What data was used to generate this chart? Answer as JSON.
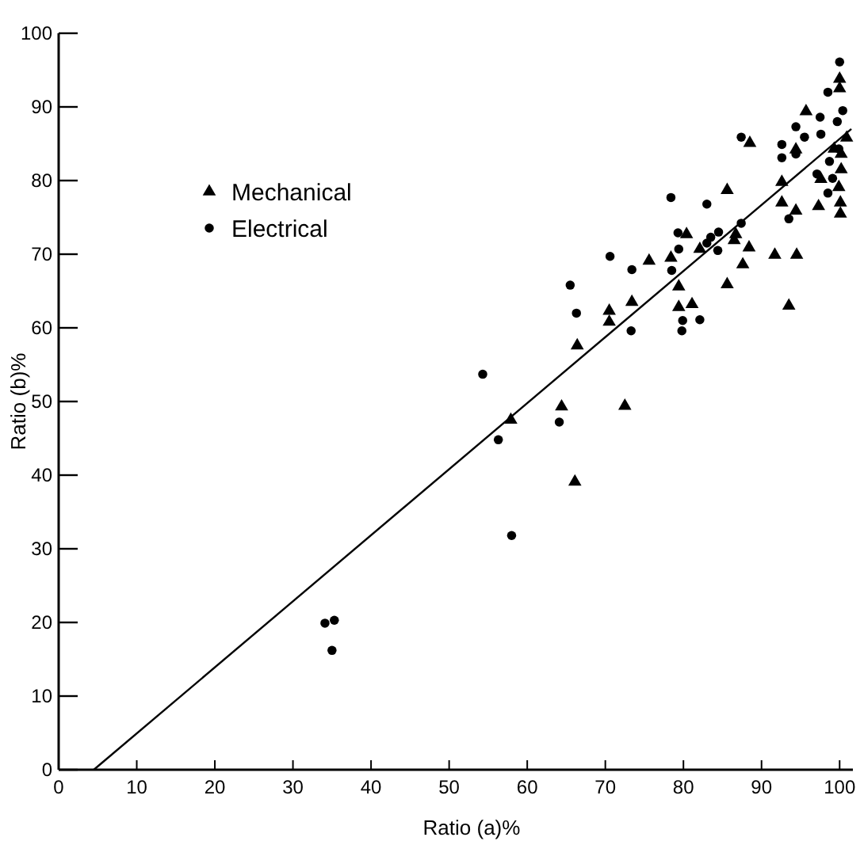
{
  "chart_data": {
    "type": "scatter",
    "xlabel": "Ratio (a)%",
    "ylabel": "Ratio (b)%",
    "xlim": [
      0,
      101.7
    ],
    "ylim": [
      0,
      100
    ],
    "xticks": [
      0,
      10,
      20,
      30,
      40,
      50,
      60,
      70,
      80,
      90,
      100
    ],
    "yticks": [
      0,
      10,
      20,
      30,
      40,
      50,
      60,
      70,
      80,
      90,
      100
    ],
    "legend": "top left",
    "series": [
      {
        "name": "Mechanical",
        "color": "#000000",
        "marker": "triangle",
        "x": [
          57.9,
          64.4,
          66.1,
          66.4,
          70.5,
          70.5,
          72.5,
          73.4,
          75.6,
          78.4,
          79.4,
          79.4,
          80.4,
          81.1,
          82.1,
          85.6,
          85.6,
          86.5,
          86.7,
          88.5,
          87.6,
          88.4,
          91.7,
          92.6,
          92.6,
          94.5,
          93.5,
          94.4,
          94.4,
          95.7,
          97.3,
          97.6,
          100,
          100,
          99.3,
          99.9,
          100.1,
          100.1,
          100.2,
          100.9,
          100.2
        ],
        "values": [
          47.5,
          49.3,
          39.1,
          57.6,
          62.3,
          60.8,
          49.4,
          63.5,
          69.1,
          69.5,
          65.6,
          62.8,
          72.7,
          63.2,
          70.7,
          78.7,
          65.9,
          71.9,
          72.7,
          85.1,
          68.6,
          70.9,
          69.9,
          79.8,
          77,
          69.9,
          63,
          75.9,
          84.2,
          89.4,
          76.5,
          80.2,
          93.8,
          92.5,
          84.3,
          79.1,
          77,
          75.5,
          81.5,
          85.8,
          83.6
        ]
      },
      {
        "name": "Electrical",
        "color": "#000000",
        "marker": "circle",
        "x": [
          34.1,
          35.3,
          35,
          54.3,
          56.3,
          58,
          64.1,
          65.5,
          66.3,
          70.6,
          73.4,
          73.3,
          78.4,
          78.5,
          79.3,
          79.4,
          79.9,
          79.8,
          82.1,
          83,
          83.5,
          84.5,
          83,
          84.4,
          87.4,
          87.4,
          92.6,
          92.6,
          93.5,
          94.4,
          94.4,
          95.5,
          97.5,
          97.6,
          98.5,
          98.7,
          98.5,
          97.1,
          99.1,
          100,
          99.7,
          100.4,
          99.9
        ],
        "values": [
          19.9,
          20.3,
          16.2,
          53.7,
          44.8,
          31.8,
          47.2,
          65.8,
          62,
          69.7,
          67.9,
          59.6,
          77.7,
          67.8,
          72.9,
          70.7,
          61,
          59.6,
          61.1,
          76.8,
          72.3,
          73,
          71.5,
          70.5,
          74.2,
          85.9,
          84.9,
          83.1,
          74.8,
          87.3,
          83.6,
          85.9,
          88.6,
          86.3,
          92,
          82.6,
          78.3,
          80.9,
          80.3,
          96.1,
          88,
          89.5,
          84.3
        ]
      },
      {
        "type": "line",
        "color": "#000000",
        "marker": "none",
        "line_style": "solid",
        "x": [
          4.5,
          101.5
        ],
        "values": [
          0,
          87
        ]
      }
    ]
  }
}
